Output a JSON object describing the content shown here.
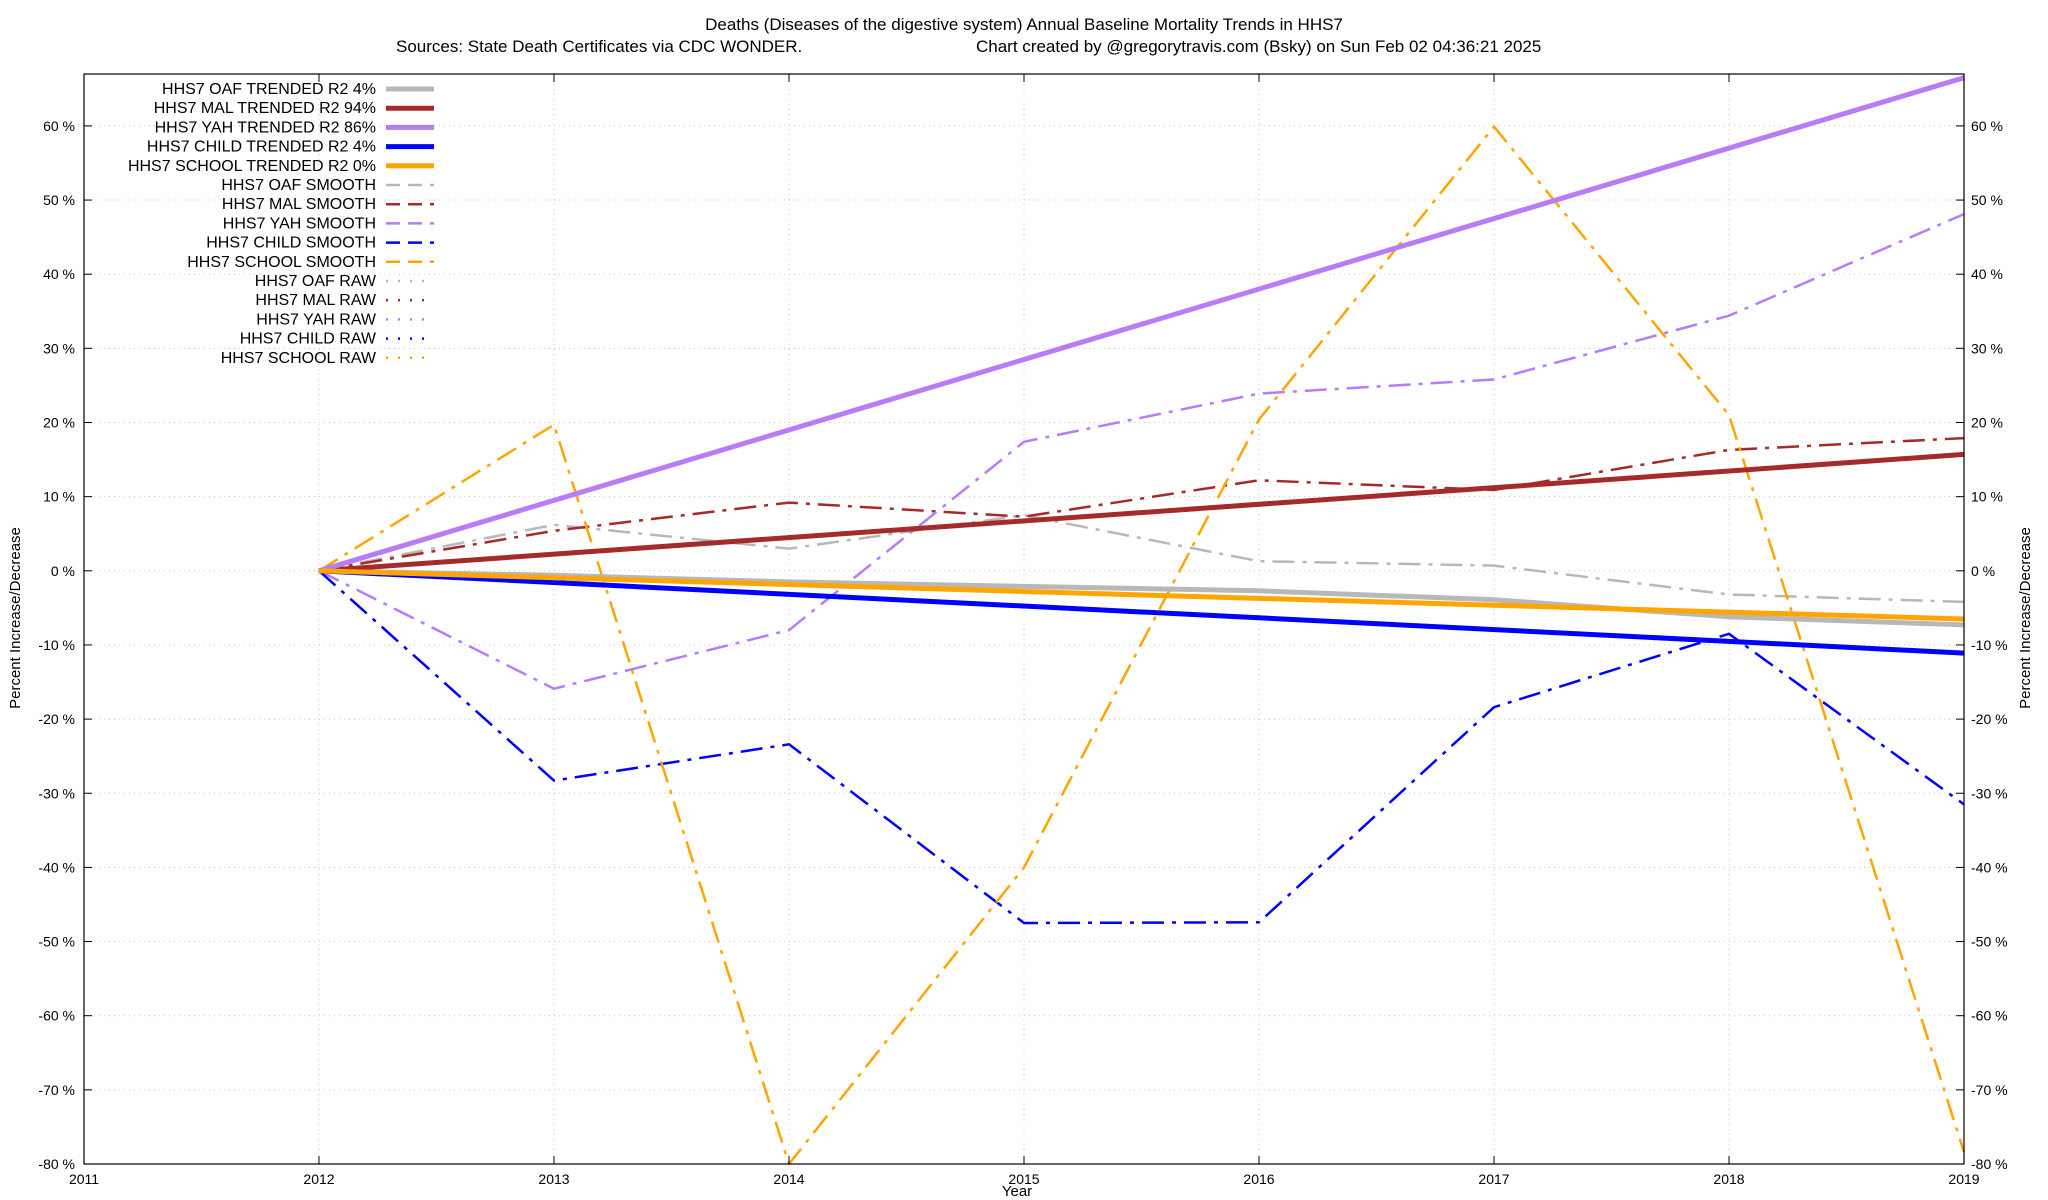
{
  "chart_data": {
    "type": "line",
    "title": "Deaths (Diseases of the digestive system)  Annual Baseline Mortality Trends in HHS7",
    "subtitle_left": "Sources: State Death Certificates via CDC WONDER.",
    "subtitle_right": "Chart created by @gregorytravis.com (Bsky) on Sun Feb 02 04:36:21 2025",
    "xlabel": "Year",
    "ylabel": "Percent Increase/Decrease",
    "xlim": [
      2011,
      2019
    ],
    "ylim": [
      -80,
      67
    ],
    "x_ticks": [
      2011,
      2012,
      2013,
      2014,
      2015,
      2016,
      2017,
      2018,
      2019
    ],
    "x_tick_labels": [
      "2011",
      "2012",
      "2013",
      "2014",
      "2015",
      "2016",
      "2017",
      "2018",
      "2019"
    ],
    "y_ticks": [
      -80,
      -70,
      -60,
      -50,
      -40,
      -30,
      -20,
      -10,
      0,
      10,
      20,
      30,
      40,
      50,
      60
    ],
    "y_tick_labels": [
      "-80 %",
      "-70 %",
      "-60 %",
      "-50 %",
      "-40 %",
      "-30 %",
      "-20 %",
      "-10 %",
      "0 %",
      "10 %",
      "20 %",
      "30 %",
      "40 %",
      "50 %",
      "60 %"
    ],
    "grid": true,
    "legend_position": "top-left",
    "series": [
      {
        "name": "HHS7 OAF TRENDED R2  4%",
        "style": "solid",
        "color": "#b8b8b8",
        "x": [
          2012,
          2013,
          2014,
          2015,
          2016,
          2017,
          2018,
          2019
        ],
        "y": [
          0,
          -0.6,
          -1.5,
          -2.1,
          -2.7,
          -3.9,
          -6.2,
          -7.3
        ]
      },
      {
        "name": "HHS7 MAL TRENDED R2  94%",
        "style": "solid",
        "color": "#a52a2a",
        "x": [
          2012,
          2019
        ],
        "y": [
          0,
          15.7
        ]
      },
      {
        "name": "HHS7 YAH TRENDED R2  86%",
        "style": "solid",
        "color": "#b87cf5",
        "x": [
          2012,
          2019
        ],
        "y": [
          0,
          66.5
        ]
      },
      {
        "name": "HHS7 CHILD TRENDED R2  4%",
        "style": "solid",
        "color": "#0000ff",
        "x": [
          2012,
          2019
        ],
        "y": [
          0,
          -11.1
        ]
      },
      {
        "name": "HHS7 SCHOOL TRENDED R2  0%",
        "style": "solid",
        "color": "#ffa500",
        "x": [
          2012,
          2019
        ],
        "y": [
          0,
          -6.5
        ]
      },
      {
        "name": "HHS7 OAF SMOOTH",
        "style": "dashdot",
        "color": "#b8b8b8",
        "x": [
          2012,
          2013,
          2014,
          2015,
          2016,
          2017,
          2018,
          2019
        ],
        "y": [
          0,
          6.2,
          3.0,
          7.5,
          1.3,
          0.7,
          -3.2,
          -4.2
        ]
      },
      {
        "name": "HHS7 MAL SMOOTH",
        "style": "dashdot",
        "color": "#a52a2a",
        "x": [
          2012,
          2013,
          2014,
          2015,
          2016,
          2017,
          2018,
          2019
        ],
        "y": [
          0,
          5.4,
          9.2,
          7.3,
          12.2,
          10.9,
          16.3,
          17.9
        ]
      },
      {
        "name": "HHS7 YAH SMOOTH",
        "style": "dashdot",
        "color": "#b87cf5",
        "x": [
          2012,
          2013,
          2014,
          2015,
          2016,
          2017,
          2018,
          2019
        ],
        "y": [
          0,
          -15.9,
          -8.0,
          17.4,
          23.9,
          25.8,
          34.4,
          48.1
        ]
      },
      {
        "name": "HHS7 CHILD SMOOTH",
        "style": "dashdot",
        "color": "#0000ff",
        "x": [
          2012,
          2013,
          2014,
          2015,
          2016,
          2017,
          2018,
          2019
        ],
        "y": [
          0,
          -28.3,
          -23.4,
          -47.5,
          -47.4,
          -18.4,
          -8.5,
          -31.5
        ]
      },
      {
        "name": "HHS7 SCHOOL SMOOTH",
        "style": "dashdot",
        "color": "#ffa500",
        "x": [
          2012,
          2013,
          2014,
          2015,
          2016,
          2017,
          2018,
          2019
        ],
        "y": [
          0,
          19.7,
          -80.0,
          -40.0,
          20.4,
          59.9,
          21.0,
          -78.4
        ]
      },
      {
        "name": "HHS7 OAF RAW",
        "style": "dotted",
        "color": "#b8b8b8",
        "x": [],
        "y": []
      },
      {
        "name": "HHS7 MAL RAW",
        "style": "dotted",
        "color": "#a52a2a",
        "x": [],
        "y": []
      },
      {
        "name": "HHS7 YAH RAW",
        "style": "dotted",
        "color": "#b87cf5",
        "x": [],
        "y": []
      },
      {
        "name": "HHS7 CHILD RAW",
        "style": "dotted",
        "color": "#0000ff",
        "x": [],
        "y": []
      },
      {
        "name": "HHS7 SCHOOL RAW",
        "style": "dotted",
        "color": "#ffa500",
        "x": [],
        "y": []
      }
    ]
  }
}
